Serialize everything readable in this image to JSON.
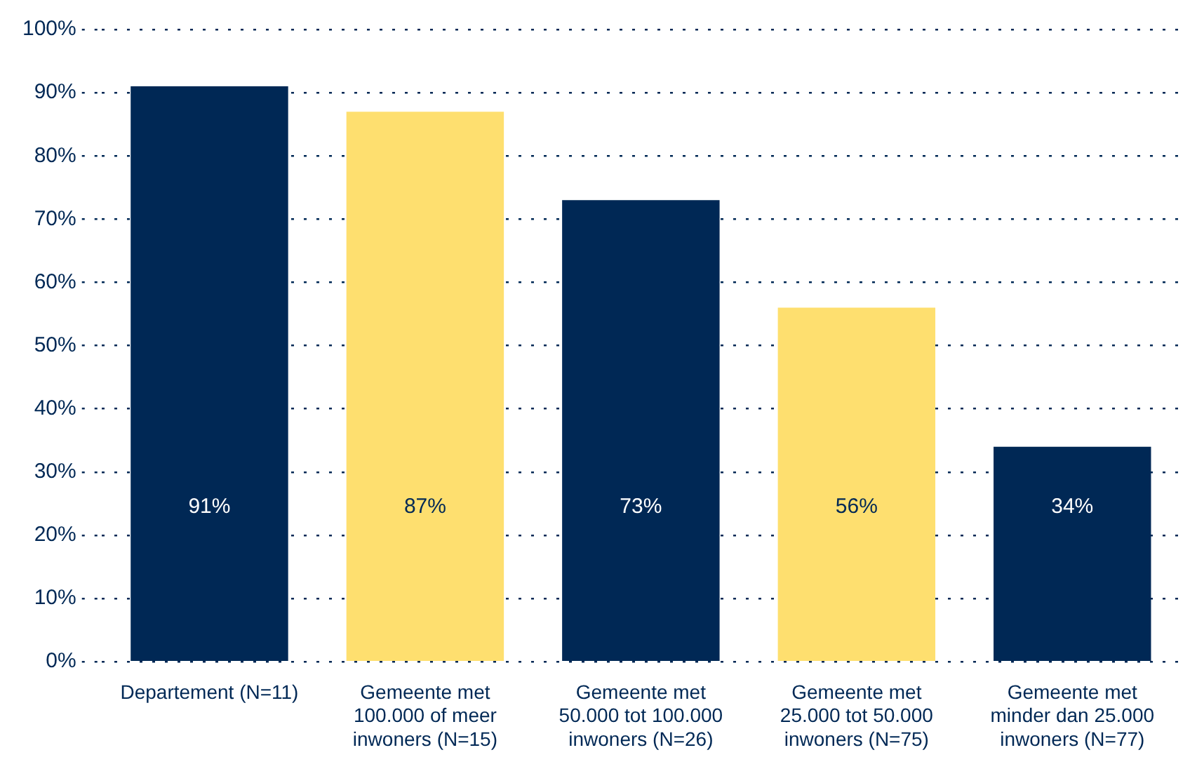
{
  "chart_data": {
    "type": "bar",
    "categories": [
      "Departement (N=11)",
      "Gemeente met 100.000 of meer inwoners (N=15)",
      "Gemeente met 50.000 tot 100.000 inwoners (N=26)",
      "Gemeente met 25.000 tot 50.000 inwoners (N=75)",
      "Gemeente met minder dan 25.000 inwoners (N=77)"
    ],
    "values": [
      91,
      87,
      73,
      56,
      34
    ],
    "colors": [
      "#002855",
      "#fedf6f",
      "#002855",
      "#fedf6f",
      "#002855"
    ],
    "value_labels": [
      "91%",
      "87%",
      "73%",
      "56%",
      "34%"
    ],
    "ylim": [
      0,
      100
    ],
    "yticks": [
      {
        "value": 0,
        "label": "0%"
      },
      {
        "value": 10,
        "label": "10%"
      },
      {
        "value": 20,
        "label": "20%"
      },
      {
        "value": 30,
        "label": "30%"
      },
      {
        "value": 40,
        "label": "40%"
      },
      {
        "value": 50,
        "label": "50%"
      },
      {
        "value": 60,
        "label": "60%"
      },
      {
        "value": 70,
        "label": "70%"
      },
      {
        "value": 80,
        "label": "80%"
      },
      {
        "value": 90,
        "label": "90%"
      },
      {
        "value": 100,
        "label": "100%"
      }
    ],
    "grid": "y",
    "legend": false
  }
}
